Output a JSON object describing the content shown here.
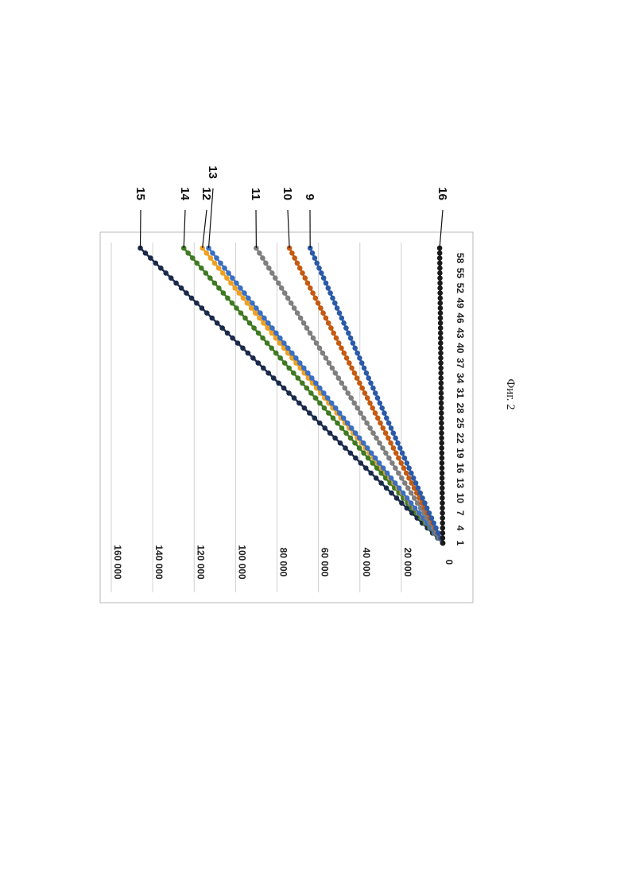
{
  "chart_data": {
    "type": "line",
    "orientation": "rotated-90-clockwise",
    "title": "",
    "xlabel": "",
    "ylabel": "",
    "x_points": 60,
    "x_tick_labels": [
      "1",
      "4",
      "7",
      "10",
      "13",
      "16",
      "19",
      "22",
      "25",
      "28",
      "31",
      "34",
      "37",
      "40",
      "43",
      "46",
      "49",
      "52",
      "55",
      "58"
    ],
    "y_tick_labels": [
      "0",
      "20 000",
      "40 000",
      "60 000",
      "80 000",
      "100 000",
      "120 000",
      "140 000",
      "160 000"
    ],
    "ylim": [
      0,
      160000
    ],
    "grid": true,
    "series": [
      {
        "label": "15",
        "color": "#1b2a4a",
        "start": 0,
        "end": 146000
      },
      {
        "label": "14",
        "color": "#3f7a23",
        "start": 0,
        "end": 125000
      },
      {
        "label": "12",
        "color": "#f0a020",
        "start": 0,
        "end": 116000
      },
      {
        "label": "13",
        "color": "#3a6fc2",
        "start": 0,
        "end": 113000
      },
      {
        "label": "11",
        "color": "#7f7f7f",
        "start": 0,
        "end": 90000
      },
      {
        "label": "10",
        "color": "#c55a11",
        "start": 0,
        "end": 74000
      },
      {
        "label": "9",
        "color": "#2a5aa8",
        "start": 0,
        "end": 64000
      },
      {
        "label": "16",
        "color": "#1a1a1a",
        "start": 0,
        "end": 1500
      }
    ]
  },
  "caption": "Фиг. 2"
}
